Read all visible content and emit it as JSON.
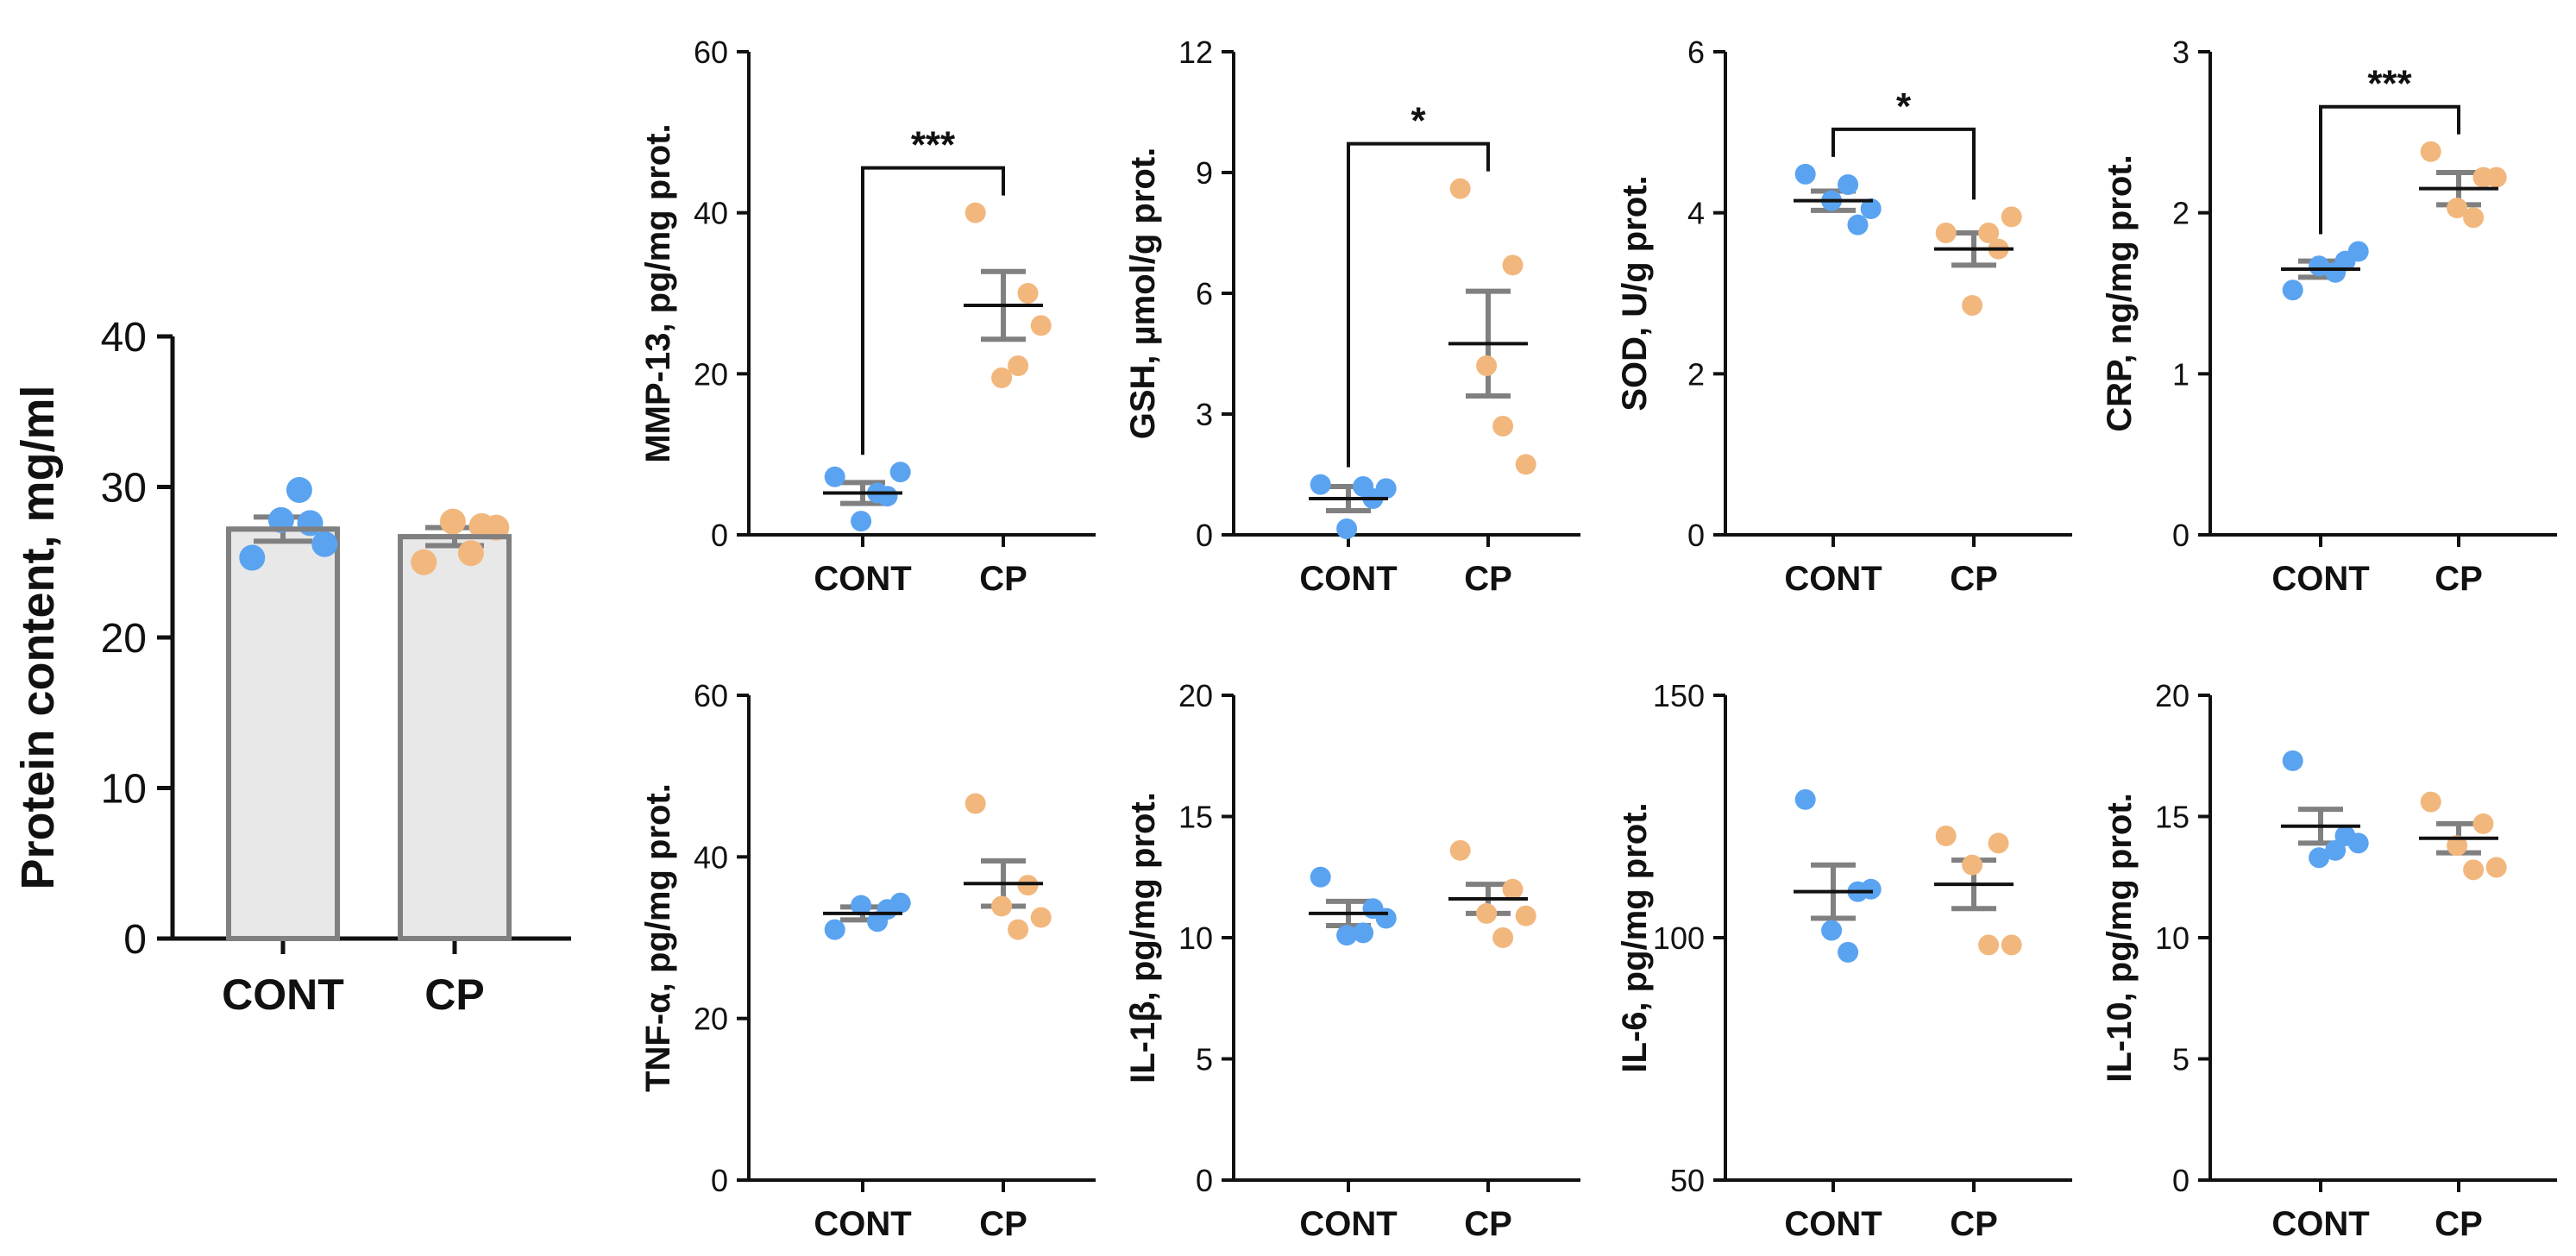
{
  "colors": {
    "cont": "#5aa3f0",
    "cp": "#f2b77d",
    "err": "#808080",
    "bar_fill": "#e8e8e8",
    "axis": "#111111"
  },
  "chart_data": [
    {
      "id": "protein",
      "type": "bar",
      "categories": [
        "CONT",
        "CP"
      ],
      "ylabel": "Protein content, mg/ml",
      "ylim": [
        0,
        40
      ],
      "ticks": [
        0,
        10,
        20,
        30,
        40
      ],
      "means": [
        27.2,
        26.7
      ],
      "sem": [
        0.8,
        0.6
      ],
      "points": [
        [
          25.3,
          27.6,
          27.8,
          29.8,
          26.2
        ],
        [
          25.0,
          27.4,
          27.7,
          25.6,
          27.3
        ]
      ],
      "significance": ""
    },
    {
      "id": "mmp13",
      "type": "scatter",
      "categories": [
        "CONT",
        "CP"
      ],
      "ylabel": "MMP-13, pg/mg prot.",
      "ylim": [
        0,
        60
      ],
      "ticks": [
        0,
        20,
        40,
        60
      ],
      "means": [
        5.2,
        28.5
      ],
      "sem": [
        1.3,
        4.2
      ],
      "points": [
        [
          7.2,
          4.8,
          1.7,
          5.2,
          7.8
        ],
        [
          40.0,
          30.0,
          19.5,
          21.0,
          26.0
        ]
      ],
      "significance": "***"
    },
    {
      "id": "gsh",
      "type": "scatter",
      "categories": [
        "CONT",
        "CP"
      ],
      "ylabel": "GSH, µmol/g prot.",
      "ylim": [
        0,
        12
      ],
      "ticks": [
        0,
        3,
        6,
        9,
        12
      ],
      "means": [
        0.9,
        4.75
      ],
      "sem": [
        0.3,
        1.3
      ],
      "points": [
        [
          1.25,
          0.9,
          0.15,
          1.2,
          1.15
        ],
        [
          8.6,
          6.7,
          4.2,
          2.7,
          1.75
        ]
      ],
      "significance": "*"
    },
    {
      "id": "sod",
      "type": "scatter",
      "categories": [
        "CONT",
        "CP"
      ],
      "ylabel": "SOD, U/g prot.",
      "ylim": [
        0,
        6
      ],
      "ticks": [
        0,
        2,
        4,
        6
      ],
      "means": [
        4.15,
        3.55
      ],
      "sem": [
        0.12,
        0.2
      ],
      "points": [
        [
          4.48,
          3.85,
          4.15,
          4.35,
          4.05
        ],
        [
          3.75,
          3.55,
          2.85,
          3.75,
          3.95
        ]
      ],
      "significance": "*"
    },
    {
      "id": "crp",
      "type": "scatter",
      "categories": [
        "CONT",
        "CP"
      ],
      "ylabel": "CRP, ng/mg prot.",
      "ylim": [
        0,
        3
      ],
      "ticks": [
        0,
        1,
        2,
        3
      ],
      "means": [
        1.65,
        2.15
      ],
      "sem": [
        0.05,
        0.1
      ],
      "points": [
        [
          1.52,
          1.7,
          1.67,
          1.63,
          1.76
        ],
        [
          2.38,
          2.22,
          2.03,
          1.97,
          2.22
        ]
      ],
      "significance": "***"
    },
    {
      "id": "tnfa",
      "type": "scatter",
      "categories": [
        "CONT",
        "CP"
      ],
      "ylabel": "TNF-α, pg/mg prot.",
      "ylim": [
        0,
        60
      ],
      "ticks": [
        0,
        20,
        40,
        60
      ],
      "means": [
        33.0,
        36.7
      ],
      "sem": [
        0.8,
        2.8
      ],
      "points": [
        [
          31.0,
          33.5,
          34.0,
          32.0,
          34.3
        ],
        [
          46.6,
          36.5,
          33.9,
          31.0,
          32.5
        ]
      ],
      "significance": ""
    },
    {
      "id": "il1b",
      "type": "scatter",
      "categories": [
        "CONT",
        "CP"
      ],
      "ylabel": "IL-1β, pg/mg prot.",
      "ylim": [
        0,
        20
      ],
      "ticks": [
        0,
        5,
        10,
        15,
        20
      ],
      "means": [
        11.0,
        11.6
      ],
      "sem": [
        0.5,
        0.6
      ],
      "points": [
        [
          12.5,
          11.2,
          10.1,
          10.2,
          10.8
        ],
        [
          13.6,
          12.0,
          11.0,
          10.0,
          10.9
        ]
      ],
      "significance": ""
    },
    {
      "id": "il6",
      "type": "scatter",
      "categories": [
        "CONT",
        "CP"
      ],
      "ylabel": "IL-6, pg/mg prot.",
      "ylim": [
        50,
        150
      ],
      "ticks": [
        50,
        100,
        150
      ],
      "means": [
        109.5,
        111.0
      ],
      "sem": [
        5.5,
        5.0
      ],
      "points": [
        [
          128.5,
          109.5,
          101.5,
          97.0,
          110.0
        ],
        [
          121.0,
          119.5,
          115.0,
          98.5,
          98.5
        ]
      ],
      "significance": ""
    },
    {
      "id": "il10",
      "type": "scatter",
      "categories": [
        "CONT",
        "CP"
      ],
      "ylabel": "IL-10, pg/mg prot.",
      "ylim": [
        0,
        20
      ],
      "ticks": [
        0,
        5,
        10,
        15,
        20
      ],
      "means": [
        14.6,
        14.1
      ],
      "sem": [
        0.7,
        0.6
      ],
      "points": [
        [
          17.3,
          14.2,
          13.3,
          13.6,
          13.9
        ],
        [
          15.6,
          14.7,
          13.8,
          12.8,
          12.9
        ]
      ],
      "significance": ""
    }
  ]
}
